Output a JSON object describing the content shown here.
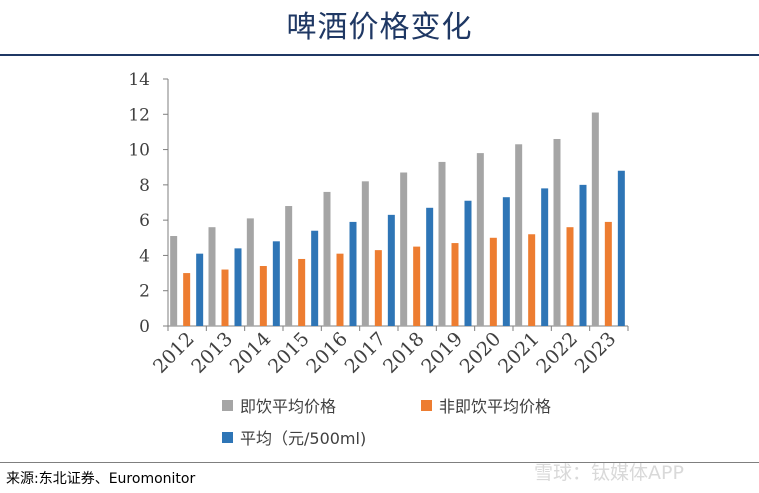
{
  "header": {
    "title": "啤酒价格变化"
  },
  "footer": {
    "source": "来源:东北证券、Euromonitor",
    "watermark": "雪球：钛媒体APP"
  },
  "chart_data": {
    "type": "bar",
    "title": "啤酒价格变化",
    "categories": [
      "2012",
      "2013",
      "2014",
      "2015",
      "2016",
      "2017",
      "2018",
      "2019",
      "2020",
      "2021",
      "2022",
      "2023"
    ],
    "series": [
      {
        "name": "即饮平均价格",
        "color": "#a5a5a5",
        "values": [
          5.1,
          5.6,
          6.1,
          6.8,
          7.6,
          8.2,
          8.7,
          9.3,
          9.8,
          10.3,
          10.6,
          12.1
        ]
      },
      {
        "name": "非即饮平均价格",
        "color": "#ed7d31",
        "values": [
          3.0,
          3.2,
          3.4,
          3.8,
          4.1,
          4.3,
          4.5,
          4.7,
          5.0,
          5.2,
          5.6,
          5.9
        ]
      },
      {
        "name": "平均（元/500ml)",
        "color": "#2e75b6",
        "values": [
          4.1,
          4.4,
          4.8,
          5.4,
          5.9,
          6.3,
          6.7,
          7.1,
          7.3,
          7.8,
          8.0,
          8.8
        ]
      }
    ],
    "ylim": [
      0,
      14
    ],
    "yticks": [
      0,
      2,
      4,
      6,
      8,
      10,
      12,
      14
    ],
    "xlabel": "",
    "ylabel": "",
    "legend_position": "bottom"
  }
}
